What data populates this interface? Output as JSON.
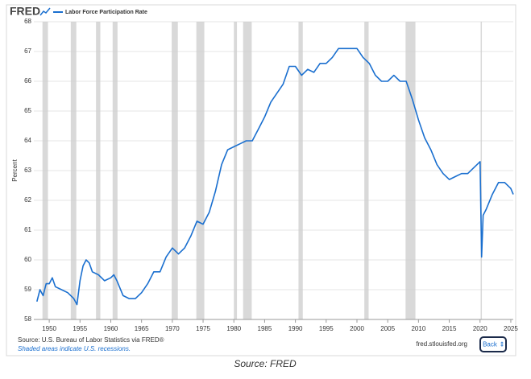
{
  "chart_data": {
    "type": "line",
    "logo": "FRED",
    "ylabel": "Percent",
    "source": "Source: U.S. Bureau of Labor Statistics via FRED®",
    "note": "Shaded areas indicate U.S. recessions.",
    "site": "fred.stlouisfed.org",
    "button": "Back",
    "caption": "Source: FRED",
    "x": [
      1948,
      1948.5,
      1949,
      1949.5,
      1950,
      1950.5,
      1951,
      1952,
      1953,
      1954,
      1954.5,
      1955,
      1955.5,
      1956,
      1956.5,
      1957,
      1958,
      1959,
      1960,
      1960.5,
      1961,
      1962,
      1963,
      1964,
      1965,
      1966,
      1967,
      1968,
      1969,
      1970,
      1971,
      1972,
      1973,
      1974,
      1975,
      1976,
      1977,
      1978,
      1979,
      1980,
      1981,
      1982,
      1983,
      1984,
      1985,
      1986,
      1987,
      1988,
      1989,
      1990,
      1991,
      1992,
      1993,
      1994,
      1995,
      1996,
      1997,
      1998,
      1999,
      2000,
      2001,
      2002,
      2003,
      2004,
      2005,
      2006,
      2007,
      2008,
      2009,
      2010,
      2011,
      2012,
      2013,
      2014,
      2015,
      2016,
      2017,
      2018,
      2019,
      2020,
      2020.25,
      2020.5,
      2021,
      2022,
      2023,
      2024,
      2025,
      2025.4
    ],
    "series": [
      {
        "name": "Labor Force Participation Rate",
        "color": "#1a6fcf",
        "values": [
          58.6,
          59.0,
          58.8,
          59.2,
          59.2,
          59.4,
          59.1,
          59.0,
          58.9,
          58.7,
          58.5,
          59.3,
          59.8,
          60.0,
          59.9,
          59.6,
          59.5,
          59.3,
          59.4,
          59.5,
          59.3,
          58.8,
          58.7,
          58.7,
          58.9,
          59.2,
          59.6,
          59.6,
          60.1,
          60.4,
          60.2,
          60.4,
          60.8,
          61.3,
          61.2,
          61.6,
          62.3,
          63.2,
          63.7,
          63.8,
          63.9,
          64.0,
          64.0,
          64.4,
          64.8,
          65.3,
          65.6,
          65.9,
          66.5,
          66.5,
          66.2,
          66.4,
          66.3,
          66.6,
          66.6,
          66.8,
          67.1,
          67.1,
          67.1,
          67.1,
          66.8,
          66.6,
          66.2,
          66.0,
          66.0,
          66.2,
          66.0,
          66.0,
          65.4,
          64.7,
          64.1,
          63.7,
          63.2,
          62.9,
          62.7,
          62.8,
          62.9,
          62.9,
          63.1,
          63.3,
          60.1,
          61.5,
          61.7,
          62.2,
          62.6,
          62.6,
          62.4,
          62.2
        ]
      }
    ],
    "recessions": [
      [
        1948.9,
        1949.8
      ],
      [
        1953.5,
        1954.4
      ],
      [
        1957.6,
        1958.3
      ],
      [
        1960.3,
        1961.1
      ],
      [
        1969.9,
        1970.9
      ],
      [
        1973.9,
        1975.2
      ],
      [
        1980.0,
        1980.5
      ],
      [
        1981.5,
        1982.9
      ],
      [
        1990.5,
        1991.2
      ],
      [
        2001.2,
        2001.9
      ],
      [
        2007.9,
        2009.5
      ],
      [
        2020.1,
        2020.3
      ]
    ],
    "xlim": [
      1947.5,
      2025.4
    ],
    "ylim": [
      58,
      68
    ],
    "xticks": [
      1950,
      1955,
      1960,
      1965,
      1970,
      1975,
      1980,
      1985,
      1990,
      1995,
      2000,
      2005,
      2010,
      2015,
      2020,
      2025
    ],
    "yticks": [
      58,
      59,
      60,
      61,
      62,
      63,
      64,
      65,
      66,
      67,
      68
    ],
    "grid": true
  }
}
